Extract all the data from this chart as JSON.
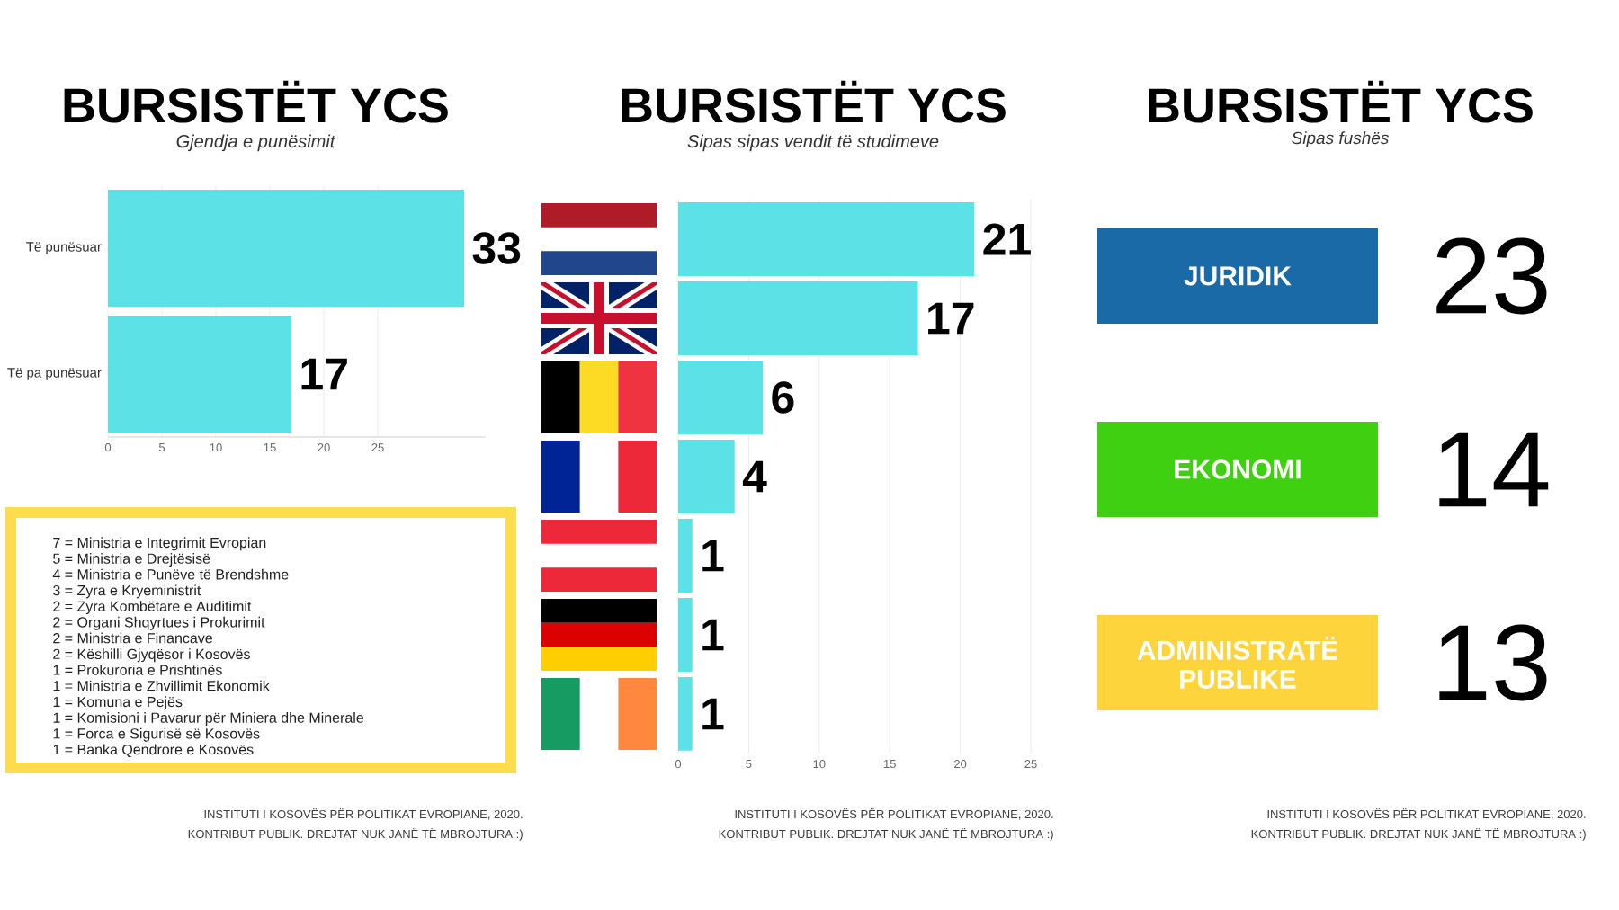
{
  "chart_data": [
    {
      "type": "bar",
      "title": "BURSISTËT YCS",
      "subtitle": "Gjendja e punësimit",
      "orientation": "horizontal",
      "categories": [
        "Të punësuar",
        "Të pa punësuar"
      ],
      "values": [
        33,
        17
      ],
      "color": "#5ce1e6",
      "xlim": [
        0,
        35
      ],
      "xticks": [
        0,
        5,
        10,
        15,
        20,
        25
      ],
      "grid": "x",
      "data_labels": true,
      "annotations": [
        "INSTITUTI I KOSOVËS PËR POLITIKAT EVROPIANE, 2020.",
        "KONTRIBUT PUBLIK. DREJTAT NUK JANË TË MBROJTURA :)"
      ]
    },
    {
      "type": "other",
      "color": "#fddc4e",
      "annotations": [
        "7 = Ministria e Integrimit Evropian",
        "5 = Ministria e Drejtësisë",
        "4 = Ministria e Punëve të Brendshme",
        "3 = Zyra e Kryeministrit",
        "2 = Zyra Kombëtare e Auditimit",
        "2 = Organi Shqyrtues i Prokurimit",
        "2 = Ministria e Financave",
        "2 = Këshilli Gjyqësor i Kosovës",
        "1 = Prokuroria e Prishtinës",
        "1 = Ministria e Zhvillimit Ekonomik",
        "1 = Komuna e Pejës",
        "1 = Komisioni i Pavarur për Miniera dhe Minerale",
        "1 = Forca e Sigurisë së Kosovës",
        "1 = Banka Qendrore e Kosovës"
      ]
    },
    {
      "type": "bar",
      "title": "BURSISTËT YCS",
      "subtitle": "Sipas sipas vendit të studimeve",
      "orientation": "horizontal",
      "categories": [
        null,
        null,
        null,
        null,
        null,
        null,
        null
      ],
      "values": [
        21,
        17,
        6,
        4,
        1,
        1,
        1
      ],
      "color": "#5ce1e6",
      "xlim": [
        0,
        25
      ],
      "xticks": [
        0,
        5,
        10,
        15,
        20,
        25
      ],
      "grid": "x",
      "data_labels": true,
      "annotations": [
        "INSTITUTI I KOSOVËS PËR POLITIKAT EVROPIANE, 2020.",
        "KONTRIBUT PUBLIK. DREJTAT NUK JANË TË MBROJTURA :)"
      ]
    },
    {
      "type": "other",
      "title": "BURSISTËT YCS",
      "subtitle": "Sipas fushës",
      "categories": [
        "JURIDIK",
        "EKONOMI",
        "ADMINISTRATË PUBLIKE"
      ],
      "values": [
        23,
        14,
        13
      ],
      "colors": [
        "#1b6aa8",
        "#3fd012",
        "#fdd43c"
      ],
      "data_labels": true,
      "annotations": [
        "INSTITUTI I KOSOVËS PËR POLITIKAT EVROPIANE, 2020.",
        "KONTRIBUT PUBLIK. DREJTAT NUK JANË TË MBROJTURA :)"
      ]
    }
  ]
}
